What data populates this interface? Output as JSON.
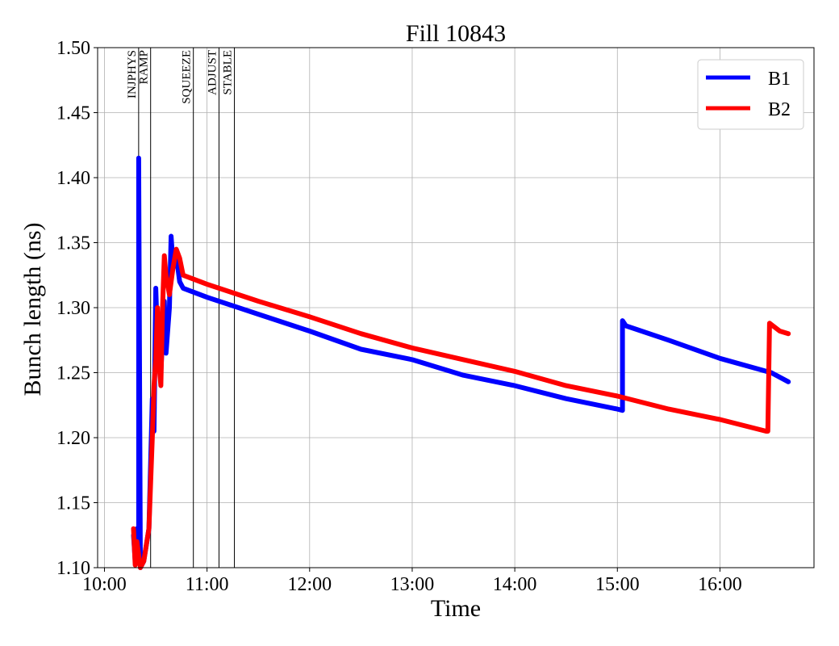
{
  "chart_data": {
    "type": "line",
    "title": "Fill 10843",
    "xlabel": "Time",
    "ylabel": "Bunch length (ns)",
    "xlim": [
      "10:00",
      "16:45"
    ],
    "ylim": [
      1.1,
      1.5
    ],
    "x_ticks": [
      "10:00",
      "11:00",
      "12:00",
      "13:00",
      "14:00",
      "15:00",
      "16:00"
    ],
    "y_ticks": [
      "1.10",
      "1.15",
      "1.20",
      "1.25",
      "1.30",
      "1.35",
      "1.40",
      "1.45",
      "1.50"
    ],
    "grid": true,
    "legend_position": "top-right",
    "mode_markers": [
      {
        "label": "INJPHYS",
        "time": "10:20"
      },
      {
        "label": "RAMP",
        "time": "10:27"
      },
      {
        "label": "SQUEEZE",
        "time": "10:52"
      },
      {
        "label": "ADJUST",
        "time": "11:07"
      },
      {
        "label": "STABLE",
        "time": "11:16"
      }
    ],
    "series": [
      {
        "name": "B1",
        "color": "#0000ff",
        "points": [
          [
            "10:17",
            1.125
          ],
          [
            "10:18",
            1.105
          ],
          [
            "10:19",
            1.13
          ],
          [
            "10:20",
            1.11
          ],
          [
            "10:20",
            1.415
          ],
          [
            "10:21",
            1.1
          ],
          [
            "10:23",
            1.105
          ],
          [
            "10:26",
            1.13
          ],
          [
            "10:28",
            1.23
          ],
          [
            "10:29",
            1.205
          ],
          [
            "10:30",
            1.315
          ],
          [
            "10:31",
            1.275
          ],
          [
            "10:33",
            1.25
          ],
          [
            "10:35",
            1.305
          ],
          [
            "10:36",
            1.265
          ],
          [
            "10:38",
            1.3
          ],
          [
            "10:39",
            1.355
          ],
          [
            "10:40",
            1.335
          ],
          [
            "10:42",
            1.34
          ],
          [
            "10:44",
            1.32
          ],
          [
            "10:46",
            1.315
          ],
          [
            "11:00",
            1.308
          ],
          [
            "11:30",
            1.295
          ],
          [
            "12:00",
            1.282
          ],
          [
            "12:30",
            1.268
          ],
          [
            "13:00",
            1.26
          ],
          [
            "13:30",
            1.248
          ],
          [
            "14:00",
            1.24
          ],
          [
            "14:30",
            1.23
          ],
          [
            "15:00",
            1.222
          ],
          [
            "15:03",
            1.221
          ],
          [
            "15:03",
            1.29
          ],
          [
            "15:05",
            1.286
          ],
          [
            "15:30",
            1.275
          ],
          [
            "16:00",
            1.261
          ],
          [
            "16:30",
            1.25
          ],
          [
            "16:40",
            1.243
          ]
        ]
      },
      {
        "name": "B2",
        "color": "#ff0000",
        "points": [
          [
            "10:17",
            1.13
          ],
          [
            "10:18",
            1.102
          ],
          [
            "10:19",
            1.12
          ],
          [
            "10:21",
            1.1
          ],
          [
            "10:23",
            1.105
          ],
          [
            "10:26",
            1.13
          ],
          [
            "10:28",
            1.2
          ],
          [
            "10:29",
            1.24
          ],
          [
            "10:30",
            1.26
          ],
          [
            "10:31",
            1.3
          ],
          [
            "10:32",
            1.255
          ],
          [
            "10:33",
            1.24
          ],
          [
            "10:34",
            1.3
          ],
          [
            "10:35",
            1.34
          ],
          [
            "10:36",
            1.325
          ],
          [
            "10:38",
            1.31
          ],
          [
            "10:40",
            1.33
          ],
          [
            "10:42",
            1.345
          ],
          [
            "10:44",
            1.338
          ],
          [
            "10:46",
            1.325
          ],
          [
            "11:00",
            1.318
          ],
          [
            "11:30",
            1.305
          ],
          [
            "12:00",
            1.293
          ],
          [
            "12:30",
            1.28
          ],
          [
            "13:00",
            1.269
          ],
          [
            "13:30",
            1.26
          ],
          [
            "14:00",
            1.251
          ],
          [
            "14:30",
            1.24
          ],
          [
            "15:00",
            1.232
          ],
          [
            "15:30",
            1.222
          ],
          [
            "16:00",
            1.214
          ],
          [
            "16:27",
            1.205
          ],
          [
            "16:28",
            1.205
          ],
          [
            "16:29",
            1.288
          ],
          [
            "16:35",
            1.282
          ],
          [
            "16:40",
            1.28
          ]
        ]
      }
    ]
  }
}
